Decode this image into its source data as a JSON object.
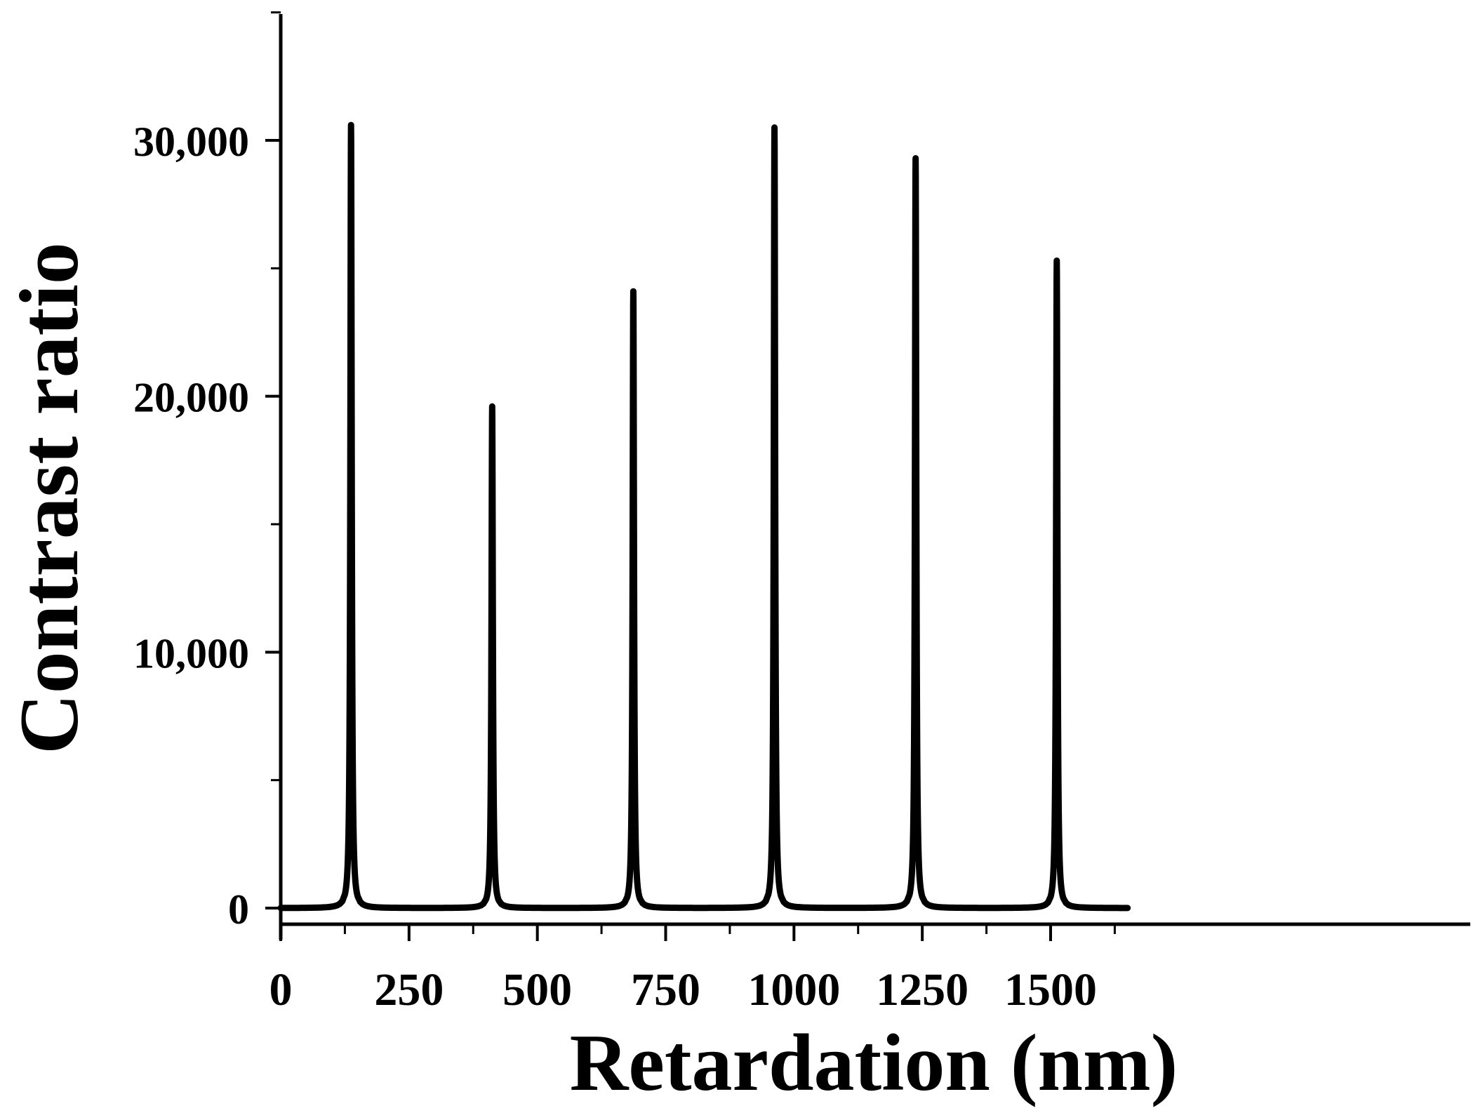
{
  "chart_data": {
    "type": "line",
    "xlabel": "Retardation (nm)",
    "ylabel": "Contrast ratio",
    "xlim": [
      0,
      1700
    ],
    "ylim": [
      -500,
      35000
    ],
    "x_ticks": [
      0,
      250,
      500,
      750,
      1000,
      1250,
      1500
    ],
    "x_tick_labels": [
      "0",
      "250",
      "500",
      "750",
      "1000",
      "1250",
      "1500"
    ],
    "x_minor_ticks": [
      125,
      375,
      625,
      875,
      1125,
      1375,
      1625
    ],
    "y_ticks": [
      0,
      10000,
      20000,
      30000
    ],
    "y_tick_labels": [
      "0",
      "10,000",
      "20,000",
      "30,000"
    ],
    "y_minor_ticks": [
      5000,
      15000,
      25000,
      35000
    ],
    "grid": false,
    "line_color": "#000000",
    "x_range": [
      0,
      1650
    ],
    "baseline": 0,
    "peaks": [
      {
        "x": 137,
        "y": 30600
      },
      {
        "x": 412,
        "y": 19600
      },
      {
        "x": 687,
        "y": 24100
      },
      {
        "x": 962,
        "y": 30500
      },
      {
        "x": 1237,
        "y": 29300
      },
      {
        "x": 1512,
        "y": 25300
      }
    ],
    "series": [
      {
        "values": []
      }
    ]
  }
}
